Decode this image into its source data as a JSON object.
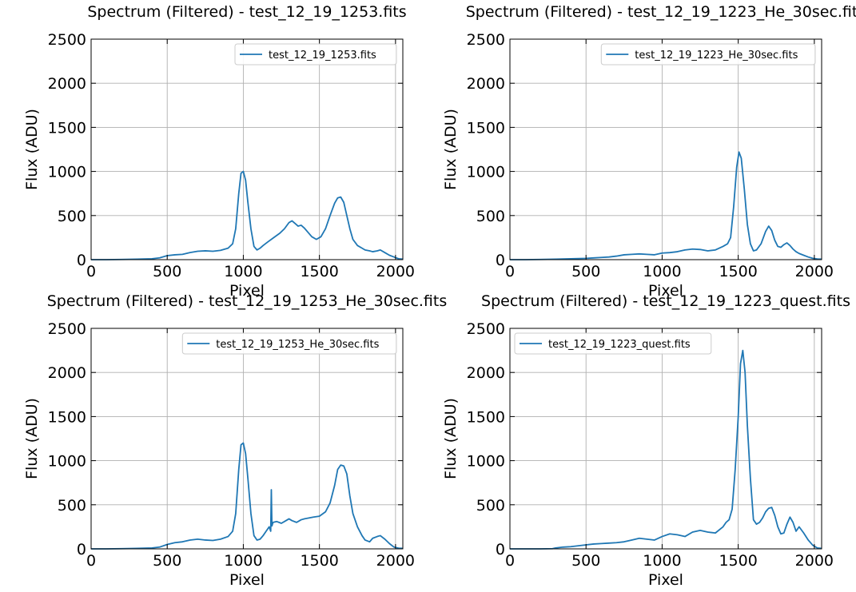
{
  "chart_data": [
    {
      "type": "line",
      "title": "Spectrum (Filtered) - test_12_19_1253.fits",
      "xlabel": "Pixel",
      "ylabel": "Flux (ADU)",
      "xlim": [
        0,
        2048
      ],
      "ylim": [
        0,
        2500
      ],
      "xticks": [
        "0",
        "500",
        "1000",
        "1500",
        "2000"
      ],
      "yticks": [
        "0",
        "500",
        "1000",
        "1500",
        "2000",
        "2500"
      ],
      "grid": true,
      "legend_position": "top-right",
      "color": "#1f77b4",
      "series": [
        {
          "name": "test_12_19_1253.fits",
          "x": [
            0,
            100,
            200,
            300,
            400,
            450,
            500,
            550,
            600,
            650,
            700,
            750,
            800,
            850,
            900,
            930,
            950,
            970,
            985,
            1000,
            1015,
            1030,
            1050,
            1070,
            1090,
            1110,
            1130,
            1160,
            1200,
            1240,
            1270,
            1300,
            1320,
            1340,
            1360,
            1380,
            1400,
            1420,
            1450,
            1480,
            1510,
            1540,
            1570,
            1600,
            1620,
            1640,
            1660,
            1680,
            1700,
            1720,
            1750,
            1780,
            1800,
            1830,
            1850,
            1880,
            1900,
            1930,
            1960,
            1990,
            2020,
            2048
          ],
          "y": [
            0,
            0,
            2,
            5,
            10,
            20,
            45,
            55,
            60,
            80,
            95,
            100,
            95,
            105,
            130,
            180,
            350,
            750,
            980,
            1000,
            900,
            650,
            350,
            150,
            110,
            130,
            160,
            200,
            250,
            300,
            350,
            420,
            440,
            410,
            380,
            390,
            360,
            320,
            260,
            230,
            260,
            350,
            500,
            640,
            700,
            710,
            650,
            500,
            350,
            230,
            160,
            130,
            110,
            100,
            90,
            100,
            110,
            80,
            50,
            30,
            10,
            5
          ]
        }
      ]
    },
    {
      "type": "line",
      "title": "Spectrum (Filtered) - test_12_19_1223_He_30sec.fits",
      "xlabel": "Pixel",
      "ylabel": "Flux (ADU)",
      "xlim": [
        0,
        2048
      ],
      "ylim": [
        0,
        2500
      ],
      "xticks": [
        "0",
        "500",
        "1000",
        "1500",
        "2000"
      ],
      "yticks": [
        "0",
        "500",
        "1000",
        "1500",
        "2000",
        "2500"
      ],
      "grid": true,
      "legend_position": "top-right",
      "color": "#1f77b4",
      "series": [
        {
          "name": "test_12_19_1223_He_30sec.fits",
          "x": [
            0,
            100,
            200,
            300,
            400,
            500,
            550,
            600,
            650,
            700,
            750,
            800,
            850,
            900,
            950,
            1000,
            1050,
            1100,
            1150,
            1200,
            1250,
            1300,
            1350,
            1400,
            1430,
            1450,
            1470,
            1490,
            1505,
            1520,
            1540,
            1560,
            1580,
            1600,
            1620,
            1650,
            1680,
            1700,
            1720,
            1740,
            1760,
            1780,
            1800,
            1820,
            1840,
            1860,
            1880,
            1900,
            1930,
            1960,
            1990,
            2020,
            2048
          ],
          "y": [
            0,
            0,
            2,
            5,
            10,
            15,
            20,
            25,
            30,
            40,
            55,
            60,
            65,
            60,
            55,
            75,
            80,
            90,
            110,
            120,
            115,
            100,
            110,
            150,
            180,
            250,
            600,
            1050,
            1220,
            1150,
            800,
            400,
            180,
            100,
            110,
            180,
            320,
            380,
            330,
            220,
            150,
            140,
            170,
            190,
            160,
            120,
            90,
            70,
            50,
            30,
            15,
            8,
            5
          ]
        }
      ]
    },
    {
      "type": "line",
      "title": "Spectrum (Filtered) - test_12_19_1253_He_30sec.fits",
      "xlabel": "Pixel",
      "ylabel": "Flux (ADU)",
      "xlim": [
        0,
        2048
      ],
      "ylim": [
        0,
        2500
      ],
      "xticks": [
        "0",
        "500",
        "1000",
        "1500",
        "2000"
      ],
      "yticks": [
        "0",
        "500",
        "1000",
        "1500",
        "2000",
        "2500"
      ],
      "grid": true,
      "legend_position": "top-right",
      "color": "#1f77b4",
      "series": [
        {
          "name": "test_12_19_1253_He_30sec.fits",
          "x": [
            0,
            100,
            200,
            300,
            400,
            450,
            500,
            550,
            600,
            650,
            700,
            750,
            800,
            850,
            900,
            930,
            950,
            970,
            985,
            1000,
            1015,
            1030,
            1050,
            1070,
            1090,
            1110,
            1130,
            1150,
            1170,
            1180,
            1184,
            1188,
            1195,
            1220,
            1250,
            1280,
            1300,
            1320,
            1350,
            1380,
            1400,
            1430,
            1460,
            1500,
            1540,
            1570,
            1600,
            1620,
            1640,
            1660,
            1680,
            1700,
            1720,
            1750,
            1780,
            1800,
            1830,
            1850,
            1880,
            1900,
            1930,
            1960,
            1990,
            2020,
            2048
          ],
          "y": [
            0,
            0,
            2,
            5,
            10,
            20,
            50,
            70,
            80,
            100,
            110,
            100,
            95,
            110,
            140,
            200,
            400,
            900,
            1180,
            1200,
            1080,
            800,
            400,
            150,
            100,
            110,
            150,
            200,
            250,
            200,
            670,
            260,
            300,
            310,
            290,
            320,
            340,
            320,
            300,
            330,
            340,
            350,
            360,
            370,
            420,
            520,
            720,
            900,
            950,
            940,
            850,
            600,
            400,
            250,
            150,
            100,
            80,
            120,
            140,
            150,
            110,
            60,
            20,
            8,
            5
          ]
        }
      ]
    },
    {
      "type": "line",
      "title": "Spectrum (Filtered) - test_12_19_1223_quest.fits",
      "xlabel": "Pixel",
      "ylabel": "Flux (ADU)",
      "xlim": [
        0,
        2048
      ],
      "ylim": [
        0,
        2500
      ],
      "xticks": [
        "0",
        "500",
        "1000",
        "1500",
        "2000"
      ],
      "yticks": [
        "0",
        "500",
        "1000",
        "1500",
        "2000",
        "2500"
      ],
      "grid": true,
      "legend_position": "top-left",
      "color": "#1f77b4",
      "series": [
        {
          "name": "test_12_19_1223_quest.fits",
          "x": [
            0,
            100,
            200,
            280,
            300,
            350,
            400,
            450,
            500,
            550,
            600,
            650,
            700,
            750,
            800,
            850,
            900,
            950,
            1000,
            1050,
            1100,
            1150,
            1200,
            1250,
            1300,
            1350,
            1400,
            1420,
            1440,
            1460,
            1480,
            1500,
            1515,
            1530,
            1545,
            1560,
            1580,
            1600,
            1620,
            1640,
            1660,
            1680,
            1700,
            1720,
            1740,
            1760,
            1780,
            1800,
            1820,
            1840,
            1860,
            1880,
            1900,
            1930,
            1960,
            1990,
            2020,
            2048
          ],
          "y": [
            0,
            0,
            0,
            2,
            10,
            20,
            25,
            35,
            45,
            55,
            60,
            65,
            70,
            80,
            100,
            120,
            110,
            100,
            140,
            170,
            160,
            140,
            190,
            210,
            190,
            180,
            250,
            300,
            330,
            450,
            900,
            1500,
            2100,
            2250,
            2000,
            1400,
            800,
            330,
            280,
            300,
            350,
            420,
            460,
            470,
            380,
            250,
            170,
            180,
            280,
            360,
            300,
            200,
            250,
            180,
            100,
            40,
            10,
            5
          ]
        }
      ]
    }
  ]
}
